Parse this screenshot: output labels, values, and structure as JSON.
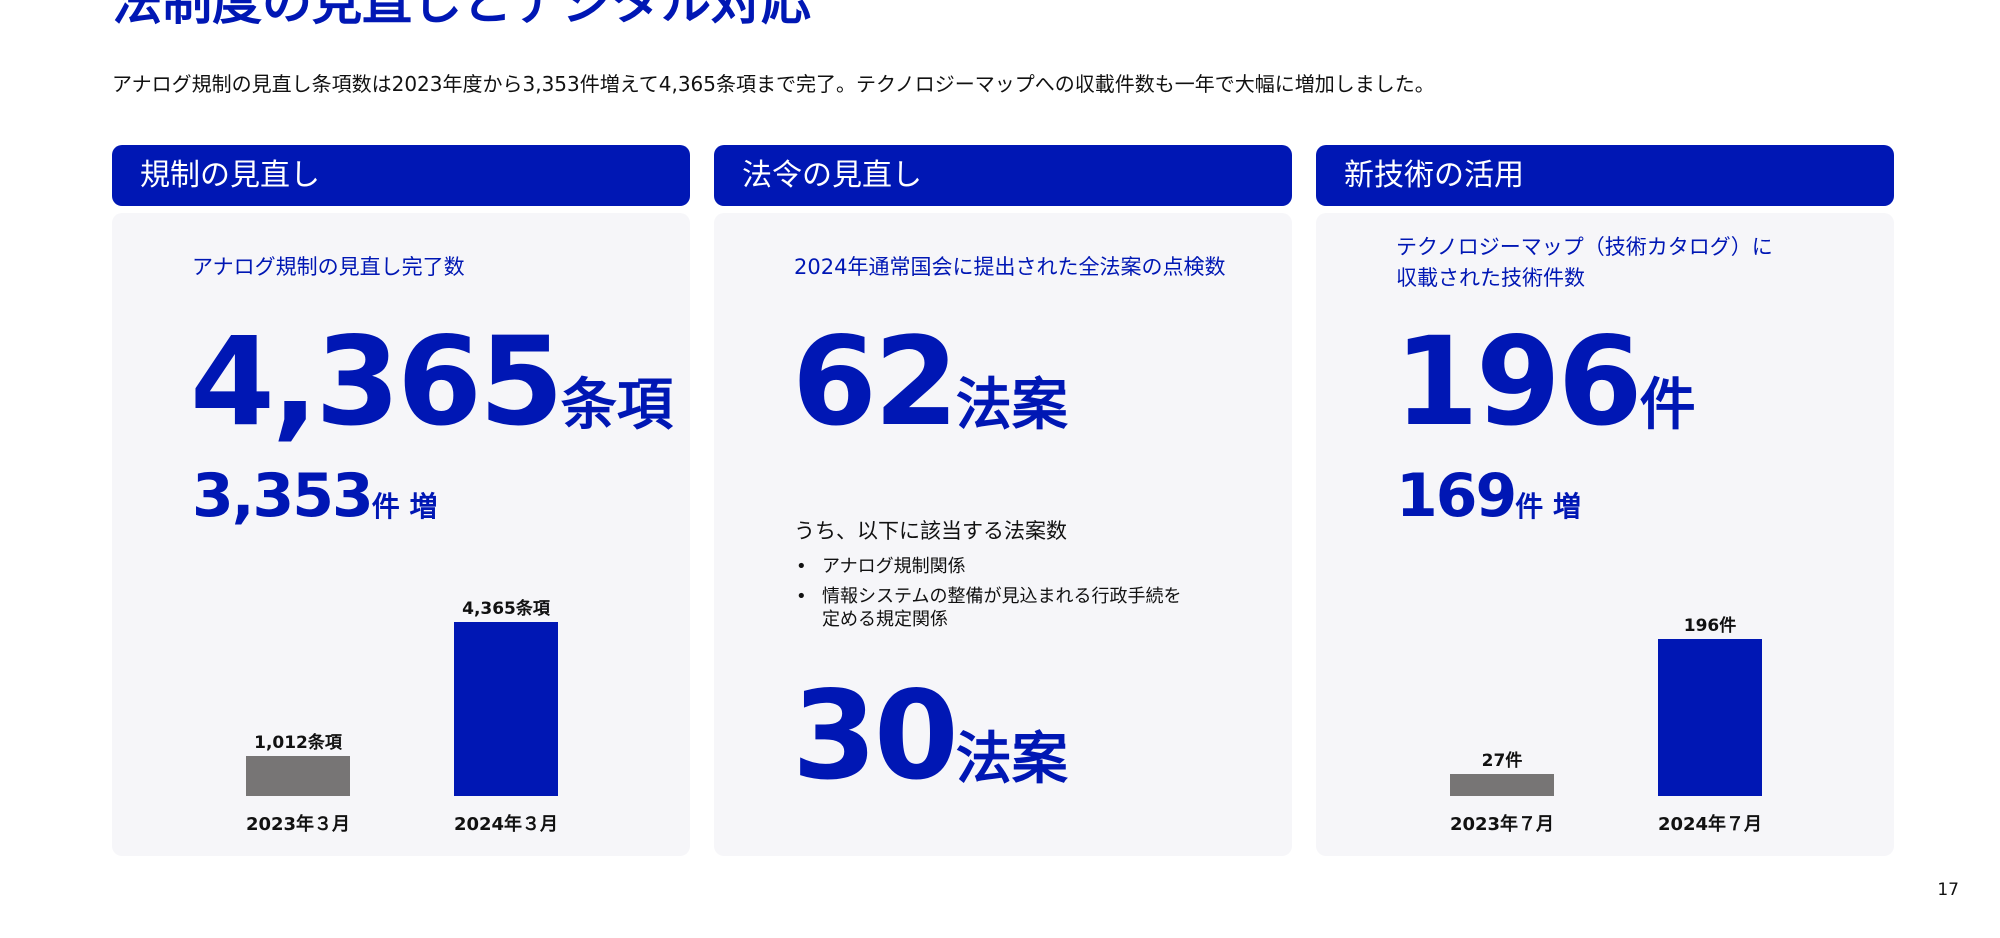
{
  "title": "法制度の見直しとデジタル対応",
  "subtitle": "アナログ規制の見直し条項数は2023年度から3,353件増えて4,365条項まで完了。テクノロジーマップへの収載件数も一年で大幅に増加しました。",
  "colors": {
    "accent": "#0017B4",
    "bar_old": "#777575",
    "panel_bg": "#F6F6F9"
  },
  "panels": [
    {
      "header": "規制の見直し",
      "label": "アナログ規制の見直し完了数",
      "value": "4,365",
      "unit": "条項",
      "delta_value": "3,353",
      "delta_unit": "件 増"
    },
    {
      "header": "法令の見直し",
      "label": "2024年通常国会に提出された全法案の点検数",
      "value": "62",
      "unit": "法案",
      "sub_heading": "うち、以下に該当する法案数",
      "bullets": [
        "アナログ規制関係",
        "情報システムの整備が見込まれる行政手続を\n定める規定関係"
      ],
      "value2": "30",
      "unit2": "法案"
    },
    {
      "header": "新技術の活用",
      "label": "テクノロジーマップ（技術カタログ）に\n収載された技術件数",
      "value": "196",
      "unit": "件",
      "delta_value": "169",
      "delta_unit": "件 増"
    }
  ],
  "chart_data": [
    {
      "type": "bar",
      "categories": [
        "2023年３月",
        "2024年３月"
      ],
      "values": [
        1012,
        4365
      ],
      "data_labels": [
        "1,012条項",
        "4,365条項"
      ]
    },
    {
      "type": "bar",
      "categories": [
        "2023年７月",
        "2024年７月"
      ],
      "values": [
        27,
        196
      ],
      "data_labels": [
        "27件",
        "196件"
      ]
    }
  ],
  "page_number": "17"
}
